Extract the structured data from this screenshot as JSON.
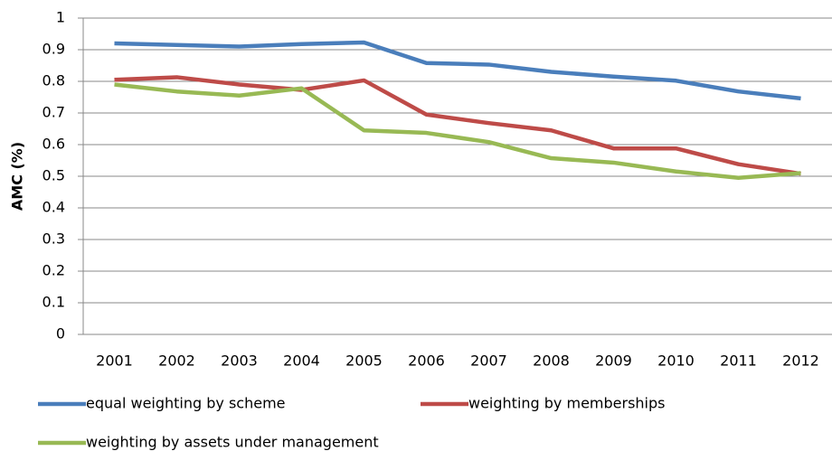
{
  "chart_data": {
    "type": "line",
    "y_label": "AMC (%)",
    "categories": [
      "2001",
      "2002",
      "2003",
      "2004",
      "2005",
      "2006",
      "2007",
      "2008",
      "2009",
      "2010",
      "2011",
      "2012"
    ],
    "series": [
      {
        "name": "equal weighting by scheme",
        "color": "#4a7ebb",
        "values": [
          0.92,
          0.915,
          0.91,
          0.918,
          0.923,
          0.858,
          0.853,
          0.83,
          0.815,
          0.802,
          0.768,
          0.746
        ]
      },
      {
        "name": "weighting by memberships",
        "color": "#be4b48",
        "values": [
          0.805,
          0.813,
          0.79,
          0.773,
          0.803,
          0.695,
          0.668,
          0.645,
          0.588,
          0.588,
          0.538,
          0.508
        ]
      },
      {
        "name": "weighting by assets under management",
        "color": "#98b954",
        "values": [
          0.79,
          0.768,
          0.755,
          0.778,
          0.645,
          0.637,
          0.608,
          0.557,
          0.543,
          0.515,
          0.495,
          0.51
        ]
      }
    ],
    "ylim": [
      0,
      1
    ],
    "yticks": [
      0,
      0.1,
      0.2,
      0.3,
      0.4,
      0.5,
      0.6,
      0.7,
      0.8,
      0.9,
      1
    ],
    "grid": true,
    "legend": "bottom"
  }
}
